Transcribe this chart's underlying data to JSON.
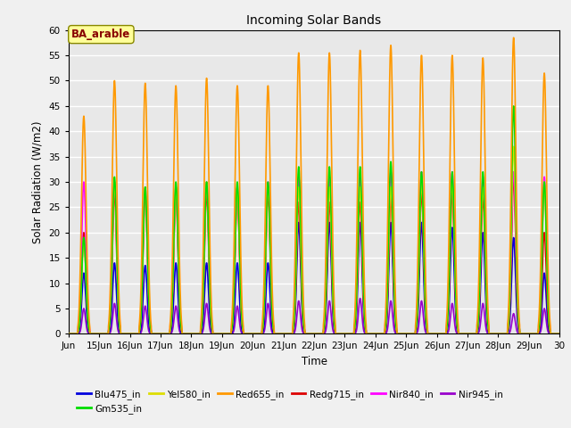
{
  "title": "Incoming Solar Bands",
  "xlabel": "Time",
  "ylabel": "Solar Radiation (W/m2)",
  "annotation": "BA_arable",
  "ylim": [
    0,
    60
  ],
  "xlim_days": [
    14,
    30
  ],
  "x_ticks_labels": [
    "Jun",
    "15Jun",
    "16Jun",
    "17Jun",
    "18Jun",
    "19Jun",
    "20Jun",
    "21Jun",
    "22Jun",
    "23Jun",
    "24Jun",
    "25Jun",
    "26Jun",
    "27Jun",
    "28Jun",
    "29Jun",
    "30"
  ],
  "x_ticks_pos": [
    14,
    15,
    16,
    17,
    18,
    19,
    20,
    21,
    22,
    23,
    24,
    25,
    26,
    27,
    28,
    29,
    30
  ],
  "series": [
    {
      "name": "Blu475_in",
      "color": "#0000dd",
      "lw": 1.2
    },
    {
      "name": "Gm535_in",
      "color": "#00dd00",
      "lw": 1.2
    },
    {
      "name": "Yel580_in",
      "color": "#dddd00",
      "lw": 1.2
    },
    {
      "name": "Red655_in",
      "color": "#ff9900",
      "lw": 1.2
    },
    {
      "name": "Redg715_in",
      "color": "#dd0000",
      "lw": 1.2
    },
    {
      "name": "Nir840_in",
      "color": "#ff00ff",
      "lw": 1.2
    },
    {
      "name": "Nir945_in",
      "color": "#9900cc",
      "lw": 1.2
    }
  ],
  "bg_color": "#e8e8e8",
  "grid_color": "#ffffff",
  "annotation_bg": "#ffff99",
  "annotation_fg": "#880000",
  "day_peaks_Red655": [
    43,
    50,
    49.5,
    49,
    50.5,
    49,
    49,
    55.5,
    55.5,
    56,
    57,
    55,
    55,
    54.5,
    58.5,
    51.5
  ],
  "day_peaks_Nir840": [
    30,
    30,
    29,
    29,
    30,
    29,
    30,
    31,
    31,
    31,
    32,
    32,
    32,
    31,
    32,
    31
  ],
  "day_peaks_Gm535": [
    19,
    31,
    29,
    30,
    30,
    30,
    30,
    33,
    33,
    33,
    34,
    32,
    32,
    32,
    45,
    30
  ],
  "day_peaks_Yel580": [
    19,
    30,
    29,
    29,
    30,
    29,
    29,
    29,
    29,
    29,
    29,
    30,
    30,
    29,
    37,
    30
  ],
  "day_peaks_Redg715": [
    20,
    28,
    28,
    28,
    28,
    28,
    28,
    26,
    26,
    26,
    27,
    28,
    28,
    27,
    31,
    20
  ],
  "day_peaks_Blu475": [
    12,
    14,
    13.5,
    14,
    14,
    14,
    14,
    22,
    22,
    22,
    22,
    22,
    21,
    20,
    19,
    12
  ],
  "day_peaks_Nir945": [
    5,
    6,
    5.5,
    5.5,
    6,
    5.5,
    6,
    6.5,
    6.5,
    7,
    6.5,
    6.5,
    6,
    6,
    4,
    5
  ]
}
